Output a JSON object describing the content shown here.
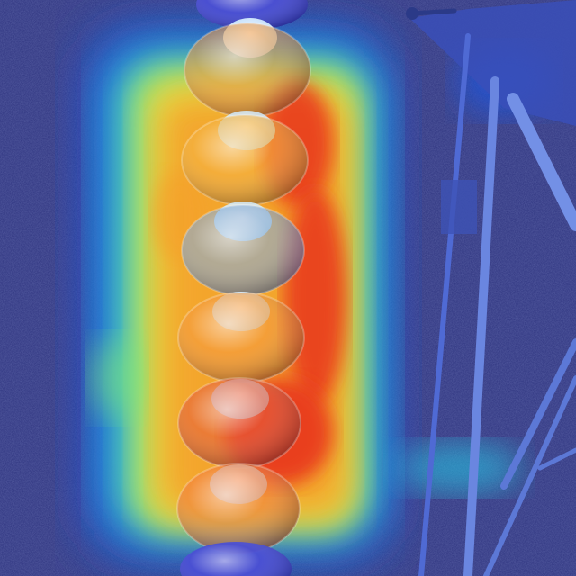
{
  "image": {
    "kind": "heatmap-overlay-photo",
    "subject": "insulator-string-on-tower",
    "insulator_disc_count": 7,
    "heatmap_colormap": [
      "#1b1f8a",
      "#2455d6",
      "#27c9e6",
      "#7ee87a",
      "#f3e23a",
      "#f5a02a",
      "#e8351f"
    ],
    "colors": {
      "background_field": "#2e347f",
      "tower_steel": "#5a78d8",
      "disc_glass": "#9fb0ff",
      "cap_highlight": "#cfe6ff"
    }
  }
}
